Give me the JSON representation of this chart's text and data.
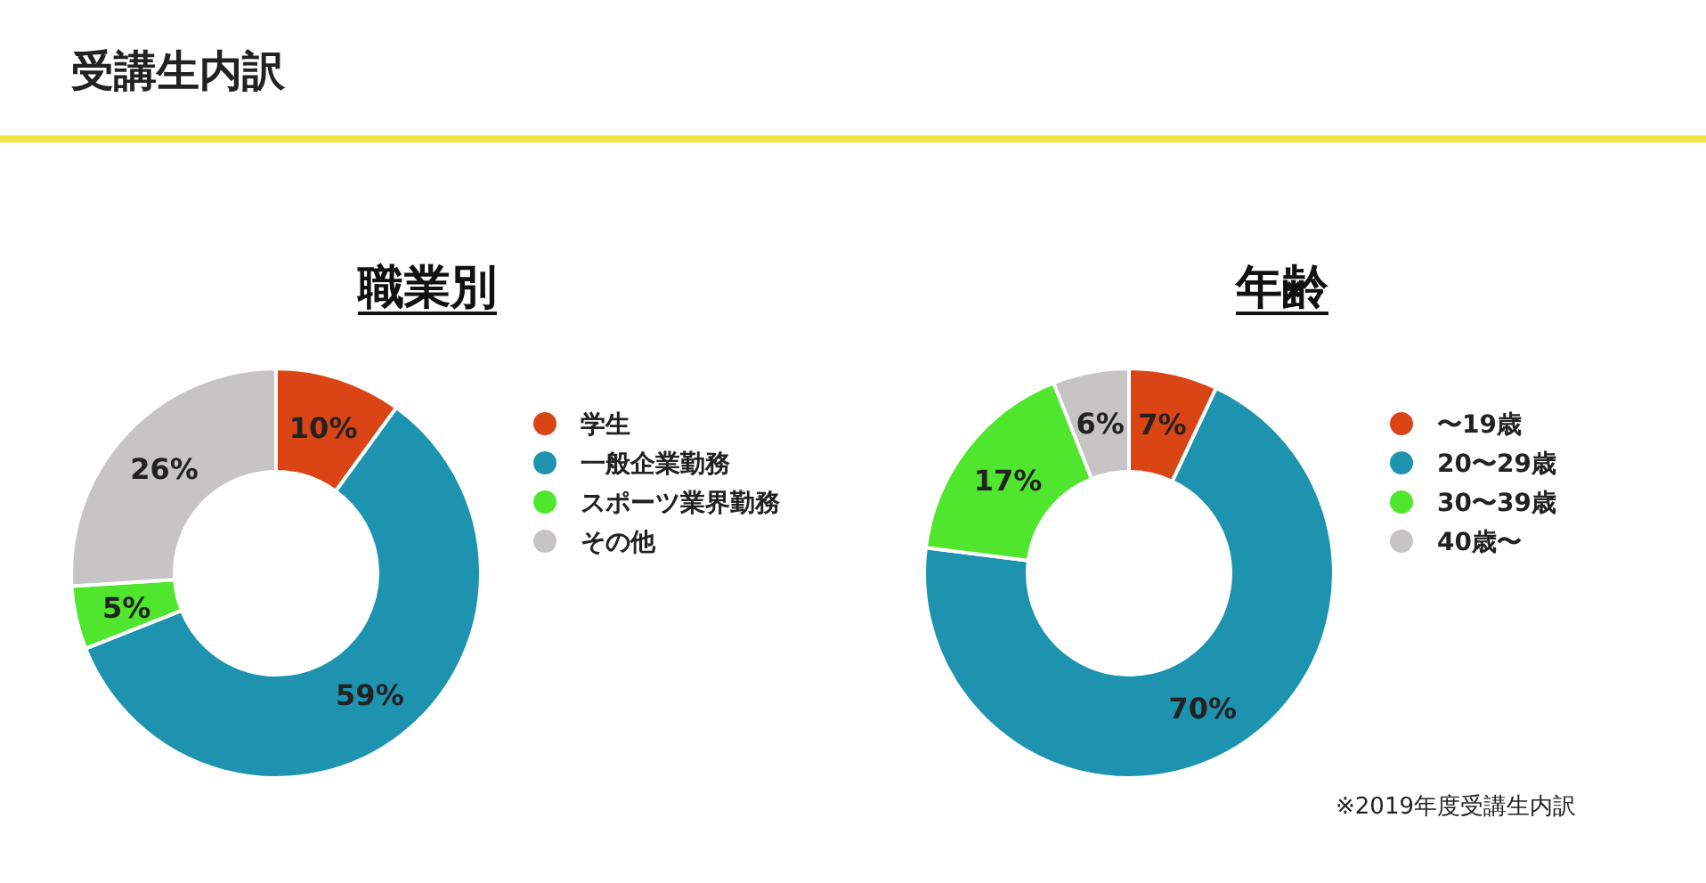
{
  "chart_data": [
    {
      "type": "other",
      "title": "受講生内訳"
    },
    {
      "type": "donut",
      "title": "職業別",
      "categories": [
        "学生",
        "一般企業勤務",
        "スポーツ業界勤務",
        "その他"
      ],
      "values": [
        10,
        59,
        5,
        26
      ],
      "value_labels": [
        "10%",
        "59%",
        "5%",
        "26%"
      ],
      "colors": [
        "#db4515",
        "#1d93b0",
        "#4fe62d",
        "#c6c4c4"
      ],
      "legend": "right"
    },
    {
      "type": "donut",
      "title": "年齢",
      "categories": [
        "〜19歳",
        "20〜29歳",
        "30〜39歳",
        "40歳〜"
      ],
      "values": [
        7,
        70,
        17,
        6
      ],
      "value_labels": [
        "7%",
        "70%",
        "17%",
        "6%"
      ],
      "colors": [
        "#db4515",
        "#1d93b0",
        "#4fe62d",
        "#c6c4c4"
      ],
      "legend": "right",
      "annotations": [
        "※2019年度受講生内訳"
      ]
    }
  ]
}
